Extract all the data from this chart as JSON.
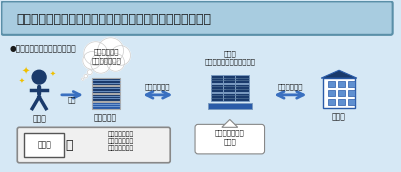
{
  "title": "４．戸籍電子証明書の活用による戸籍証明書等の添付省略",
  "bg_color": "#d6e8f5",
  "title_bg": "#a8cce0",
  "title_border": "#5a8fa8",
  "subtitle": "●申請手続（旅券発給申請等）",
  "person_label": "申請人",
  "arrow1_label": "申請",
  "office_label": "申請先機関",
  "moj_label": "法務省\n（戸籍情報連携システム）",
  "honseki_label": "本籍地",
  "left_arrow_label": "システム連携",
  "right_arrow_label": "システム連携",
  "cloud_text": "パスワードを\n提示すればいい",
  "bubble_text": "戸籍電子証明書\nを提供",
  "box_left_text": "申請書",
  "box_plus": "＋",
  "box_right_text": "戸籍電子証明書\n提供用識別符号\n（パスワード）",
  "dark_blue": "#1a3a6b",
  "mid_blue": "#2a5ba8",
  "arrow_blue": "#3a70c0",
  "light_blue": "#6090d0",
  "white": "#ffffff",
  "gray_box": "#e8e8e8",
  "dark_text": "#1a1a1a"
}
